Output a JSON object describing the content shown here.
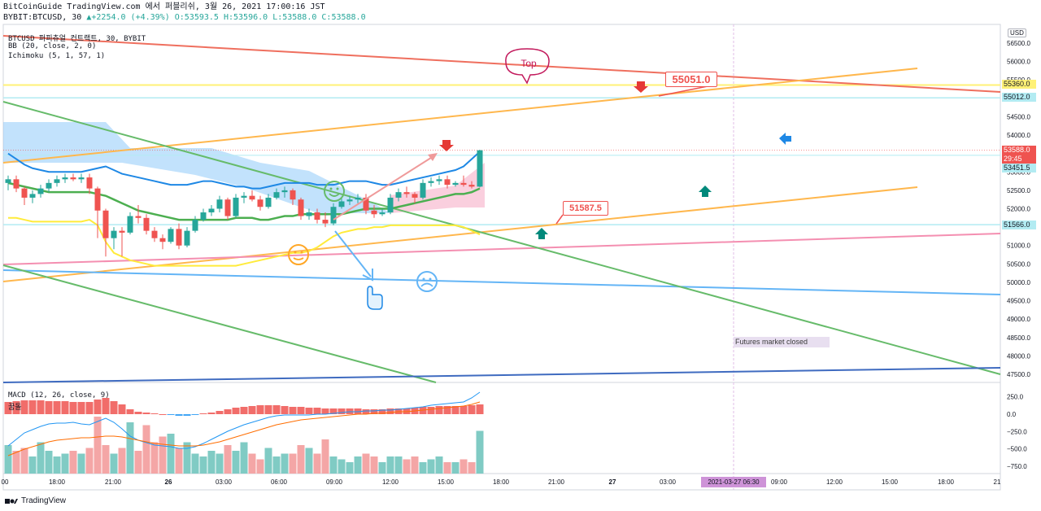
{
  "header": {
    "line1": "BitCoinGuide TradingView.com 에서 퍼블리쉬, 3월 26, 2021 17:00:16 JST",
    "symbol": "BYBIT:BTCUSD, 30",
    "ohlc_change": "▲+2254.0 (+4.39%)",
    "open": "O:53593.5",
    "high": "H:53596.0",
    "low": "L:53588.0",
    "close": "C:53588.0"
  },
  "legend": {
    "title": "BTCUSD 퍼피츄얼 컨트랙트, 30, BYBIT",
    "bb": "BB (20, close, 2, 0)",
    "ichimoku": "Ichimoku (5, 1, 57, 1)",
    "macd": "MACD (12, 26, close, 9)",
    "macd_sub": "꿈돌"
  },
  "currency": "USD",
  "annotations": {
    "top": "Top",
    "level_high": "55051.0",
    "level_low": "51587.5",
    "futures_closed": "Futures market closed",
    "date_marker": "2021-03-27   06:30"
  },
  "price_labels": [
    {
      "value": "55360.0",
      "color": "#fff176",
      "text": "#131722"
    },
    {
      "value": "55012.0",
      "color": "#b2ebf2",
      "text": "#131722"
    },
    {
      "value": "53588.0",
      "color": "#ef5350",
      "text": "#ffffff"
    },
    {
      "value": "29:45",
      "color": "#ef5350",
      "text": "#ffffff"
    },
    {
      "value": "53451.5",
      "color": "#b2ebf2",
      "text": "#131722"
    },
    {
      "value": "51566.0",
      "color": "#b2ebf2",
      "text": "#131722"
    }
  ],
  "colors": {
    "up": "#26a69a",
    "down": "#ef5350",
    "cloud": "#90caf9",
    "bb_upper": "#1e88e5",
    "bb_mid": "#4caf50",
    "bb_lower": "#ffeb3b",
    "macd_line": "#2196f3",
    "signal_line": "#ff6d00"
  },
  "footer": {
    "brand": "TradingView"
  },
  "chart_data": {
    "type": "candlestick",
    "title": "BTCUSD 퍼피츄얼 컨트랙트, 30, BYBIT",
    "y_ticks": [
      56500,
      56000,
      55500,
      55000,
      54500,
      54000,
      53500,
      53000,
      52500,
      52000,
      51500,
      51000,
      50500,
      50000,
      49500,
      49000,
      48500,
      48000,
      47500
    ],
    "ylim": [
      47300,
      56700
    ],
    "x_ticks": [
      "00",
      "18:00",
      "21:00",
      "26",
      "03:00",
      "06:00",
      "09:00",
      "12:00",
      "15:00",
      "18:00",
      "21:00",
      "27",
      "03:00",
      "2021-03-27   06:30",
      "09:00",
      "12:00",
      "15:00",
      "18:00",
      "21"
    ],
    "candles": [
      [
        52700,
        52900,
        52500,
        52800
      ],
      [
        52800,
        52900,
        52450,
        52550
      ],
      [
        52550,
        52600,
        52100,
        52300
      ],
      [
        52300,
        52500,
        52150,
        52400
      ],
      [
        52400,
        52650,
        52300,
        52550
      ],
      [
        52550,
        52800,
        52450,
        52700
      ],
      [
        52700,
        52900,
        52600,
        52800
      ],
      [
        52800,
        52950,
        52700,
        52850
      ],
      [
        52850,
        52950,
        52750,
        52800
      ],
      [
        52800,
        52950,
        52700,
        52850
      ],
      [
        52850,
        52950,
        52400,
        52550
      ],
      [
        52550,
        52600,
        51200,
        51950
      ],
      [
        51950,
        52000,
        50700,
        51200
      ],
      [
        51200,
        51500,
        50900,
        51400
      ],
      [
        51400,
        51500,
        50700,
        51350
      ],
      [
        51350,
        51900,
        51300,
        51800
      ],
      [
        51800,
        52100,
        51600,
        51750
      ],
      [
        51750,
        51850,
        51300,
        51400
      ],
      [
        51400,
        51500,
        51100,
        51200
      ],
      [
        51200,
        51300,
        50900,
        51100
      ],
      [
        51100,
        51500,
        51050,
        51450
      ],
      [
        51450,
        51600,
        50900,
        51000
      ],
      [
        51000,
        51500,
        50950,
        51400
      ],
      [
        51400,
        51800,
        51350,
        51700
      ],
      [
        51700,
        52000,
        51650,
        51900
      ],
      [
        51900,
        52100,
        51800,
        52000
      ],
      [
        52000,
        52350,
        51900,
        52250
      ],
      [
        52250,
        52300,
        51700,
        51800
      ],
      [
        51800,
        52400,
        51750,
        52300
      ],
      [
        52300,
        52450,
        52150,
        52350
      ],
      [
        52350,
        52500,
        52200,
        52250
      ],
      [
        52250,
        52350,
        51950,
        52050
      ],
      [
        52050,
        52400,
        52000,
        52300
      ],
      [
        52300,
        52550,
        52250,
        52450
      ],
      [
        52450,
        52600,
        52300,
        52500
      ],
      [
        52500,
        52550,
        52100,
        52250
      ],
      [
        52250,
        52300,
        51700,
        51800
      ],
      [
        51800,
        52000,
        51700,
        51900
      ],
      [
        51900,
        52000,
        51600,
        51700
      ],
      [
        51700,
        51900,
        51500,
        51600
      ],
      [
        51600,
        52150,
        51550,
        52050
      ],
      [
        52050,
        52300,
        52000,
        52200
      ],
      [
        52200,
        52350,
        52100,
        52250
      ],
      [
        52250,
        52400,
        52150,
        52300
      ],
      [
        52300,
        52400,
        51850,
        51950
      ],
      [
        51950,
        52100,
        51750,
        51850
      ],
      [
        51850,
        52000,
        51800,
        51900
      ],
      [
        51900,
        52400,
        51850,
        52300
      ],
      [
        52300,
        52550,
        52200,
        52450
      ],
      [
        52450,
        52600,
        52300,
        52400
      ],
      [
        52400,
        52450,
        52150,
        52300
      ],
      [
        52300,
        52800,
        52250,
        52700
      ],
      [
        52700,
        52850,
        52600,
        52750
      ],
      [
        52750,
        52900,
        52650,
        52800
      ],
      [
        52800,
        52900,
        52550,
        52650
      ],
      [
        52650,
        52750,
        52600,
        52700
      ],
      [
        52700,
        52900,
        52600,
        52650
      ],
      [
        52650,
        52750,
        52550,
        52600
      ],
      [
        52600,
        53600,
        52580,
        53588
      ]
    ],
    "bb_upper": [
      53500,
      53350,
      53200,
      53100,
      53050,
      53000,
      53000,
      53000,
      53000,
      53000,
      53050,
      53100,
      53150,
      53050,
      52950,
      52900,
      52850,
      52800,
      52750,
      52700,
      52650,
      52650,
      52650,
      52700,
      52750,
      52750,
      52700,
      52650,
      52600,
      52600,
      52550,
      52550,
      52600,
      52650,
      52700,
      52700,
      52700,
      52700,
      52650,
      52650,
      52650,
      52700,
      52750,
      52750,
      52750,
      52700,
      52650,
      52650,
      52700,
      52750,
      52800,
      52850,
      52900,
      52950,
      53000,
      53050,
      53150,
      53350,
      53550
    ],
    "bb_mid": [
      52700,
      52650,
      52600,
      52550,
      52500,
      52450,
      52450,
      52450,
      52450,
      52450,
      52450,
      52400,
      52350,
      52250,
      52150,
      52050,
      51950,
      51900,
      51850,
      51800,
      51750,
      51700,
      51700,
      51700,
      51700,
      51700,
      51700,
      51700,
      51750,
      51750,
      51750,
      51700,
      51700,
      51750,
      51800,
      51800,
      51850,
      51850,
      51850,
      51850,
      51850,
      51850,
      51900,
      51950,
      52000,
      52000,
      52000,
      52000,
      52050,
      52100,
      52150,
      52200,
      52250,
      52300,
      52350,
      52400,
      52400,
      52450,
      52550
    ],
    "bb_lower": [
      51750,
      51750,
      51700,
      51650,
      51650,
      51650,
      51650,
      51650,
      51650,
      51650,
      51700,
      51550,
      51100,
      50800,
      50700,
      50600,
      50550,
      50500,
      50450,
      50450,
      50450,
      50450,
      50450,
      50450,
      50450,
      50450,
      50450,
      50450,
      50450,
      50500,
      50550,
      50600,
      50650,
      50700,
      50750,
      50800,
      50800,
      50850,
      50950,
      51100,
      51250,
      51350,
      51400,
      51450,
      51450,
      51500,
      51500,
      51550,
      51550,
      51550,
      51550,
      51550,
      51550,
      51550,
      51550,
      51550,
      51500,
      51400,
      51300
    ]
  }
}
